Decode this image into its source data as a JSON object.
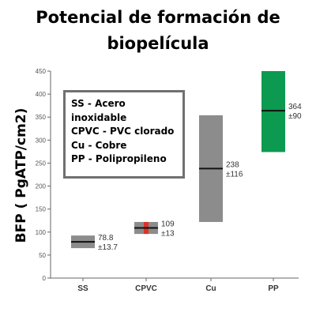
{
  "chart_data": {
    "type": "bar",
    "title": [
      "Potencial de formación de",
      "biopelícula"
    ],
    "ylabel": "BFP ( PgATP/cm2)",
    "xlabel": "",
    "ylim": [
      0,
      450
    ],
    "yticks": [
      0,
      50,
      100,
      150,
      200,
      250,
      300,
      350,
      400,
      450
    ],
    "grid": false,
    "categories": [
      "SS",
      "CPVC",
      "Cu",
      "PP"
    ],
    "values": [
      78.8,
      109,
      238,
      364
    ],
    "errors": [
      13.7,
      13,
      116,
      90
    ],
    "value_labels": [
      "78.8",
      "109",
      "238",
      "364"
    ],
    "error_labels": [
      "±13.7",
      "±13",
      "±116",
      "±90"
    ],
    "colors": [
      "#8c8c8c",
      "#8c8c8c",
      "#8c8c8c",
      "#0b9a4f"
    ],
    "marker_colors": [
      "#000000",
      "#d9342b",
      "#000000",
      "#000000"
    ],
    "legend": [
      "SS - Acero",
      "inoxidable",
      "CPVC - PVC clorado",
      "Cu - Cobre",
      "PP - Polipropileno"
    ]
  }
}
